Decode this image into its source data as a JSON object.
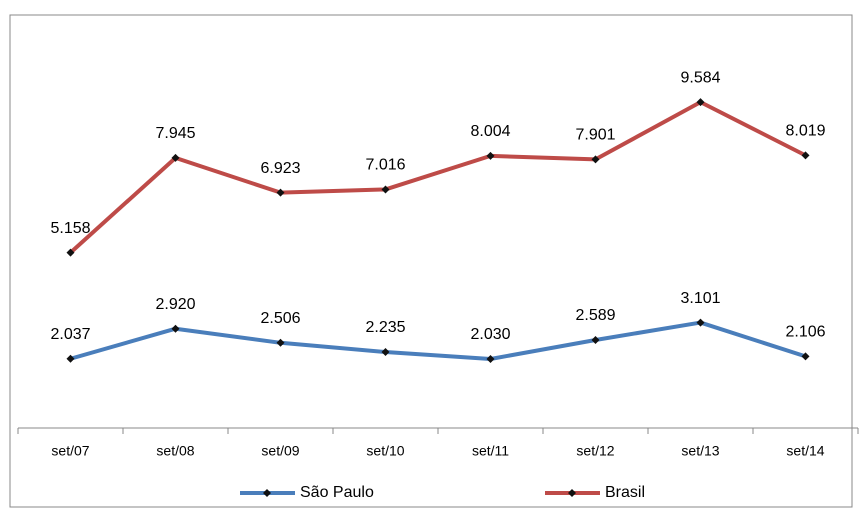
{
  "chart_data": {
    "type": "line",
    "categories": [
      "set/07",
      "set/08",
      "set/09",
      "set/10",
      "set/11",
      "set/12",
      "set/13",
      "set/14"
    ],
    "series": [
      {
        "name": "São Paulo",
        "color": "#4a7ebb",
        "values": [
          2037,
          2920,
          2506,
          2235,
          2030,
          2589,
          3101,
          2106
        ],
        "value_labels": [
          "2.037",
          "2.920",
          "2.506",
          "2.235",
          "2.030",
          "2.589",
          "3.101",
          "2.106"
        ]
      },
      {
        "name": "Brasil",
        "color": "#be4b48",
        "values": [
          5158,
          7945,
          6923,
          7016,
          8004,
          7901,
          9584,
          8019
        ],
        "value_labels": [
          "5.158",
          "7.945",
          "6.923",
          "7.016",
          "8.004",
          "7.901",
          "9.584",
          "8.019"
        ]
      }
    ],
    "ylim": [
      0,
      12000
    ],
    "legend": "bottom"
  }
}
